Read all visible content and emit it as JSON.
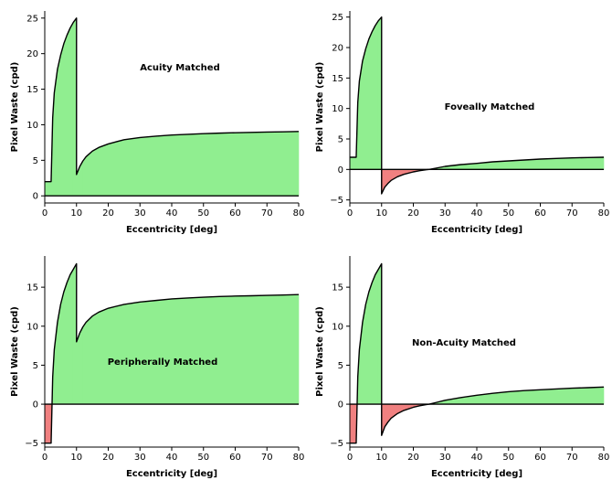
{
  "colors": {
    "positive_fill": "#90ee90",
    "negative_fill": "#f08080",
    "line": "#000000",
    "background": "#ffffff"
  },
  "chart_data": [
    {
      "type": "area",
      "title": "Acuity Matched",
      "xlabel": "Eccentricity [deg]",
      "ylabel": "Pixel Waste (cpd)",
      "xlim": [
        0,
        80
      ],
      "ylim": [
        -1,
        26
      ],
      "xticks": [
        0,
        10,
        20,
        30,
        40,
        50,
        60,
        70,
        80
      ],
      "yticks": [
        0,
        5,
        10,
        15,
        20,
        25
      ],
      "grid": false,
      "x": [
        0,
        2,
        2.5,
        3,
        4,
        5,
        6,
        7,
        8,
        9,
        10,
        10,
        11,
        12,
        13,
        15,
        17,
        20,
        25,
        30,
        35,
        40,
        45,
        50,
        55,
        60,
        65,
        70,
        75,
        80
      ],
      "y": [
        2,
        2,
        11,
        14.5,
        17.8,
        19.8,
        21.4,
        22.6,
        23.6,
        24.4,
        25,
        3,
        4.1,
        4.9,
        5.5,
        6.3,
        6.8,
        7.3,
        7.9,
        8.2,
        8.4,
        8.55,
        8.65,
        8.75,
        8.82,
        8.88,
        8.93,
        8.97,
        9.0,
        9.05
      ]
    },
    {
      "type": "area",
      "title": "Foveally Matched",
      "xlabel": "Eccentricity [deg]",
      "ylabel": "Pixel Waste (cpd)",
      "xlim": [
        0,
        80
      ],
      "ylim": [
        -5.5,
        26
      ],
      "xticks": [
        0,
        10,
        20,
        30,
        40,
        50,
        60,
        70,
        80
      ],
      "yticks": [
        -5,
        0,
        5,
        10,
        15,
        20,
        25
      ],
      "grid": false,
      "x": [
        0,
        2,
        2.5,
        3,
        4,
        5,
        6,
        7,
        8,
        9,
        10,
        10,
        11,
        12,
        13,
        15,
        17,
        20,
        22,
        24,
        25,
        27,
        30,
        35,
        40,
        45,
        50,
        55,
        60,
        65,
        70,
        75,
        80
      ],
      "y": [
        2,
        2,
        11,
        14.5,
        17.8,
        19.8,
        21.4,
        22.6,
        23.6,
        24.4,
        25,
        -4,
        -2.9,
        -2.3,
        -1.8,
        -1.2,
        -0.8,
        -0.4,
        -0.2,
        -0.05,
        0,
        0.2,
        0.5,
        0.8,
        1.0,
        1.25,
        1.4,
        1.55,
        1.7,
        1.8,
        1.9,
        1.95,
        2.0
      ]
    },
    {
      "type": "area",
      "title": "Peripherally Matched",
      "xlabel": "Eccentricity [deg]",
      "ylabel": "Pixel Waste (cpd)",
      "xlim": [
        0,
        80
      ],
      "ylim": [
        -5.5,
        19
      ],
      "xticks": [
        0,
        10,
        20,
        30,
        40,
        50,
        60,
        70,
        80
      ],
      "yticks": [
        -5,
        0,
        5,
        10,
        15
      ],
      "grid": false,
      "x": [
        0,
        2,
        2.5,
        3,
        4,
        5,
        6,
        7,
        8,
        9,
        10,
        10,
        11,
        12,
        13,
        15,
        17,
        20,
        25,
        30,
        35,
        40,
        45,
        50,
        55,
        60,
        65,
        70,
        75,
        80
      ],
      "y": [
        -5,
        -5,
        3.5,
        7,
        10.5,
        12.8,
        14.4,
        15.6,
        16.6,
        17.3,
        18,
        8,
        9.1,
        9.9,
        10.5,
        11.3,
        11.8,
        12.3,
        12.8,
        13.1,
        13.3,
        13.5,
        13.62,
        13.72,
        13.8,
        13.86,
        13.9,
        13.95,
        14.0,
        14.05
      ]
    },
    {
      "type": "area",
      "title": "Non-Acuity Matched",
      "xlabel": "Eccentricity [deg]",
      "ylabel": "Pixel Waste (cpd)",
      "xlim": [
        0,
        80
      ],
      "ylim": [
        -5.5,
        19
      ],
      "xticks": [
        0,
        10,
        20,
        30,
        40,
        50,
        60,
        70,
        80
      ],
      "yticks": [
        -5,
        0,
        5,
        10,
        15
      ],
      "grid": false,
      "x": [
        0,
        2,
        2.5,
        3,
        4,
        5,
        6,
        7,
        8,
        9,
        10,
        10,
        11,
        12,
        13,
        15,
        17,
        20,
        22,
        24,
        25,
        27,
        30,
        35,
        40,
        45,
        50,
        55,
        60,
        65,
        70,
        75,
        80
      ],
      "y": [
        -5,
        -5,
        3.5,
        7,
        10.5,
        12.8,
        14.4,
        15.6,
        16.6,
        17.3,
        18,
        -4,
        -2.9,
        -2.3,
        -1.8,
        -1.2,
        -0.8,
        -0.4,
        -0.2,
        -0.05,
        0,
        0.2,
        0.5,
        0.85,
        1.15,
        1.4,
        1.6,
        1.75,
        1.85,
        1.95,
        2.05,
        2.12,
        2.2
      ]
    }
  ]
}
